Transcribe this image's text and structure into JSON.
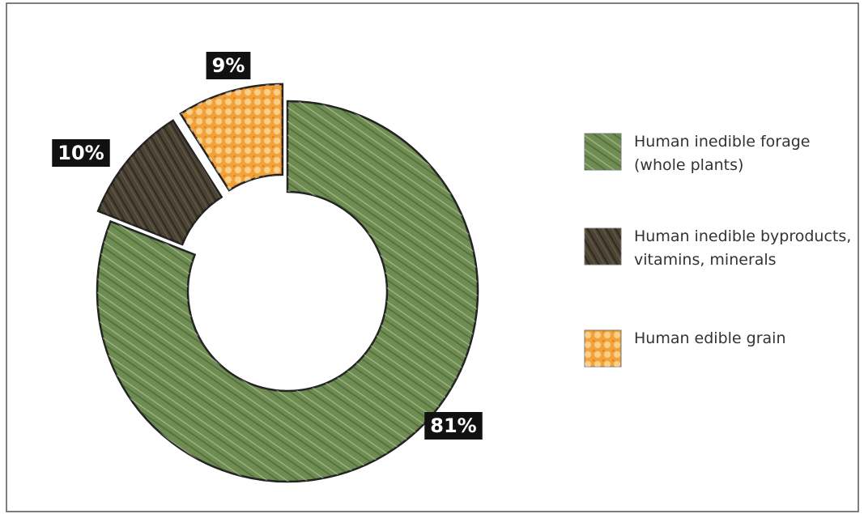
{
  "chart_data": {
    "type": "donut",
    "categories": [
      "Human inedible forage (whole plants)",
      "Human inedible byproducts, vitamins, minerals",
      "Human edible grain"
    ],
    "values": [
      81,
      10,
      9
    ],
    "value_labels": [
      "81%",
      "10%",
      "9%"
    ],
    "colors": [
      "#6f8c52",
      "#4b4334",
      "#f2a23a"
    ]
  }
}
